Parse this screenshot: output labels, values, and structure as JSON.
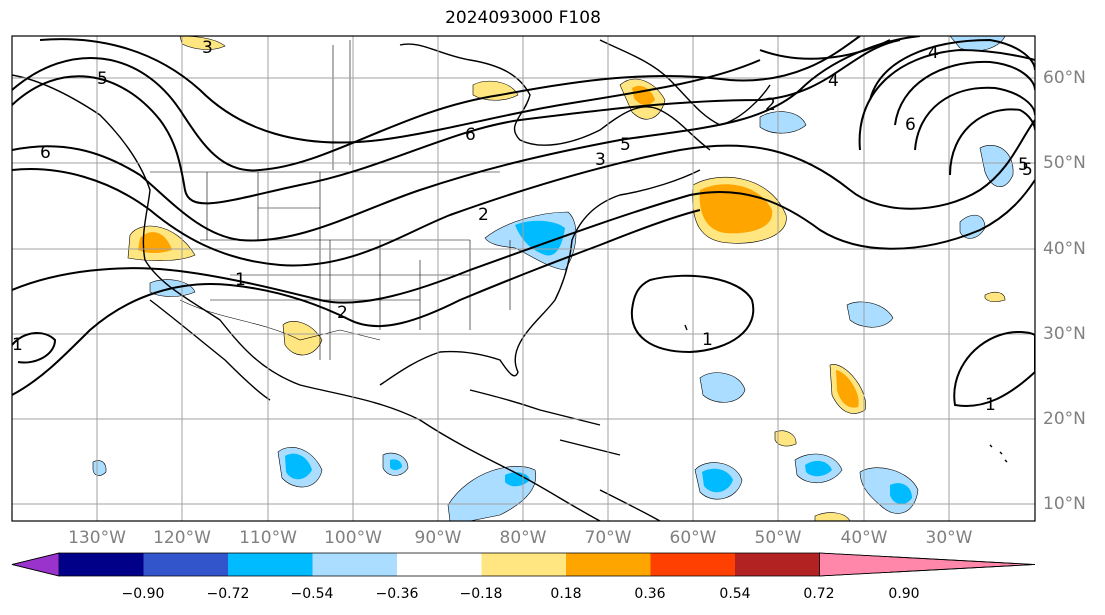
{
  "title": "2024093000 F108",
  "lon_labels": [
    "130°W",
    "120°W",
    "110°W",
    "100°W",
    "90°W",
    "80°W",
    "70°W",
    "60°W",
    "50°W",
    "40°W",
    "30°W"
  ],
  "lat_labels": [
    "60°N",
    "50°N",
    "40°N",
    "30°N",
    "20°N",
    "10°N"
  ],
  "colorbar": {
    "ticks": [
      "−0.90",
      "−0.72",
      "−0.54",
      "−0.36",
      "−0.18",
      "0.18",
      "0.36",
      "0.54",
      "0.72",
      "0.90"
    ],
    "colors": [
      "#9933cc",
      "#000088",
      "#3355cc",
      "#00bbff",
      "#aaddff",
      "#ffffff",
      "#ffe680",
      "#ffa500",
      "#ff4000",
      "#b22222",
      "#ff88aa"
    ]
  },
  "contour_labels": [
    "3",
    "5",
    "6",
    "6",
    "5",
    "3",
    "2",
    "5",
    "4",
    "4",
    "2",
    "6",
    "5",
    "1",
    "2",
    "1",
    "1",
    "1"
  ],
  "map_extent": {
    "lon_min": -135,
    "lon_max": -20,
    "lat_min": 8,
    "lat_max": 65
  },
  "palette": {
    "ocean": "#ffffff",
    "land_line": "#000000",
    "grid": "#a0a0a0",
    "contour": "#000000",
    "label_color": "#808080"
  }
}
